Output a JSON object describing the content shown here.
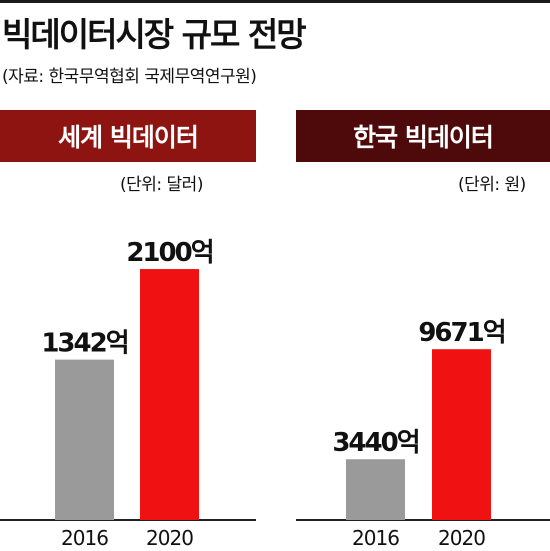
{
  "title": "빅데이터시장 규모 전망",
  "source": "(자료: 한국무역협회 국제무역연구원)",
  "colors": {
    "world_header": "#8e1411",
    "korea_header": "#4e0a0a",
    "bar_2016": "#9a9a9a",
    "bar_2020": "#f01212"
  },
  "chart_data": [
    {
      "type": "bar",
      "title": "세계 빅데이터",
      "unit": "(단위: 달러)",
      "categories": [
        "2016",
        "2020"
      ],
      "values": [
        1342,
        2100
      ],
      "data_labels": [
        "1342억",
        "2100억"
      ]
    },
    {
      "type": "bar",
      "title": "한국 빅데이터",
      "unit": "(단위: 원)",
      "categories": [
        "2016",
        "2020"
      ],
      "values": [
        3440,
        9671
      ],
      "data_labels": [
        "3440억",
        "9671억"
      ]
    }
  ]
}
